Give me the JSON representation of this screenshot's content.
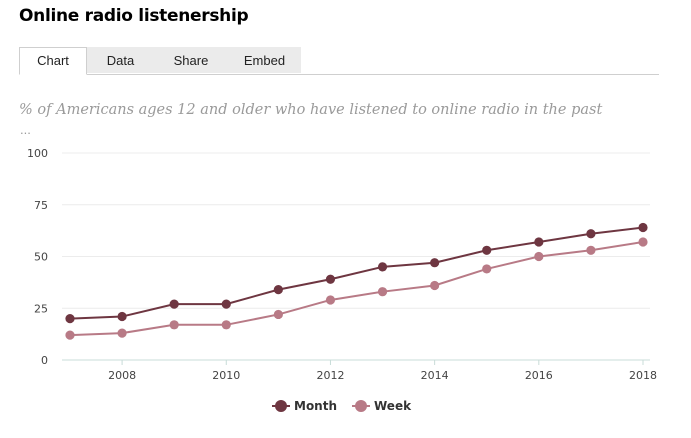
{
  "page": {
    "title": "Online radio listenership",
    "tabs": [
      {
        "label": "Chart",
        "active": true
      },
      {
        "label": "Data",
        "active": false
      },
      {
        "label": "Share",
        "active": false
      },
      {
        "label": "Embed",
        "active": false
      }
    ],
    "subtitle": "% of Americans ages 12 and older who have listened to online radio in the past",
    "subtitle_more": "..."
  },
  "chart_data": {
    "type": "line",
    "title": "",
    "xlabel": "",
    "ylabel": "",
    "x": [
      2007,
      2008,
      2009,
      2010,
      2011,
      2012,
      2013,
      2014,
      2015,
      2016,
      2017,
      2018
    ],
    "xlim": [
      2007,
      2018
    ],
    "x_ticks": [
      "2008",
      "2010",
      "2012",
      "2014",
      "2016",
      "2018"
    ],
    "ylim": [
      0,
      100
    ],
    "y_ticks": [
      "0",
      "25",
      "50",
      "75",
      "100"
    ],
    "grid": true,
    "legend_position": "bottom-center",
    "series": [
      {
        "name": "Month",
        "color": "#6e3641",
        "values": [
          20,
          21,
          27,
          27,
          34,
          39,
          45,
          47,
          53,
          57,
          61,
          64
        ]
      },
      {
        "name": "Week",
        "color": "#b87a86",
        "values": [
          12,
          13,
          17,
          17,
          22,
          29,
          33,
          36,
          44,
          50,
          53,
          57
        ]
      }
    ]
  }
}
